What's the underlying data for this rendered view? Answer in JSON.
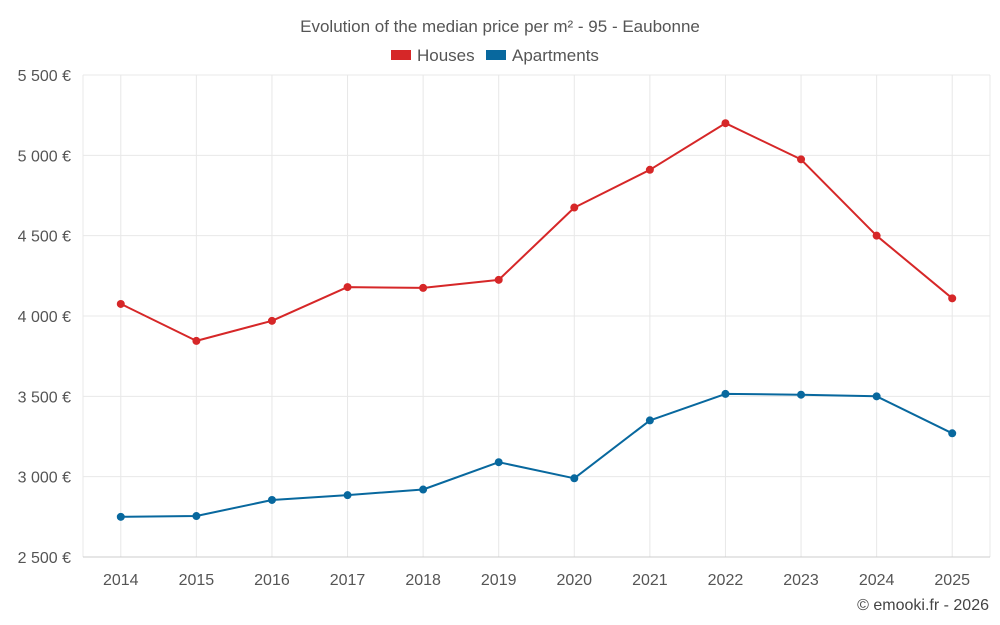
{
  "chart_data": {
    "type": "line",
    "title": "Evolution of the median price per m² - 95 - Eaubonne",
    "xlabel": "",
    "ylabel": "",
    "categories": [
      "2014",
      "2015",
      "2016",
      "2017",
      "2018",
      "2019",
      "2020",
      "2021",
      "2022",
      "2023",
      "2024",
      "2025"
    ],
    "ylim": [
      2500,
      5500
    ],
    "yticks": [
      2500,
      3000,
      3500,
      4000,
      4500,
      5000,
      5500
    ],
    "ytick_labels": [
      "2 500 €",
      "3 000 €",
      "3 500 €",
      "4 000 €",
      "4 500 €",
      "5 000 €",
      "5 500 €"
    ],
    "grid": true,
    "legend_position": "top-center",
    "series": [
      {
        "name": "Houses",
        "color": "#d62728",
        "values": [
          4075,
          3845,
          3970,
          4180,
          4175,
          4225,
          4675,
          4910,
          5200,
          4975,
          4500,
          4110
        ]
      },
      {
        "name": "Apartments",
        "color": "#08689e",
        "values": [
          2750,
          2755,
          2855,
          2885,
          2920,
          3090,
          2990,
          3350,
          3515,
          3510,
          3500,
          3270
        ]
      }
    ]
  },
  "credit": "© emooki.fr - 2026"
}
